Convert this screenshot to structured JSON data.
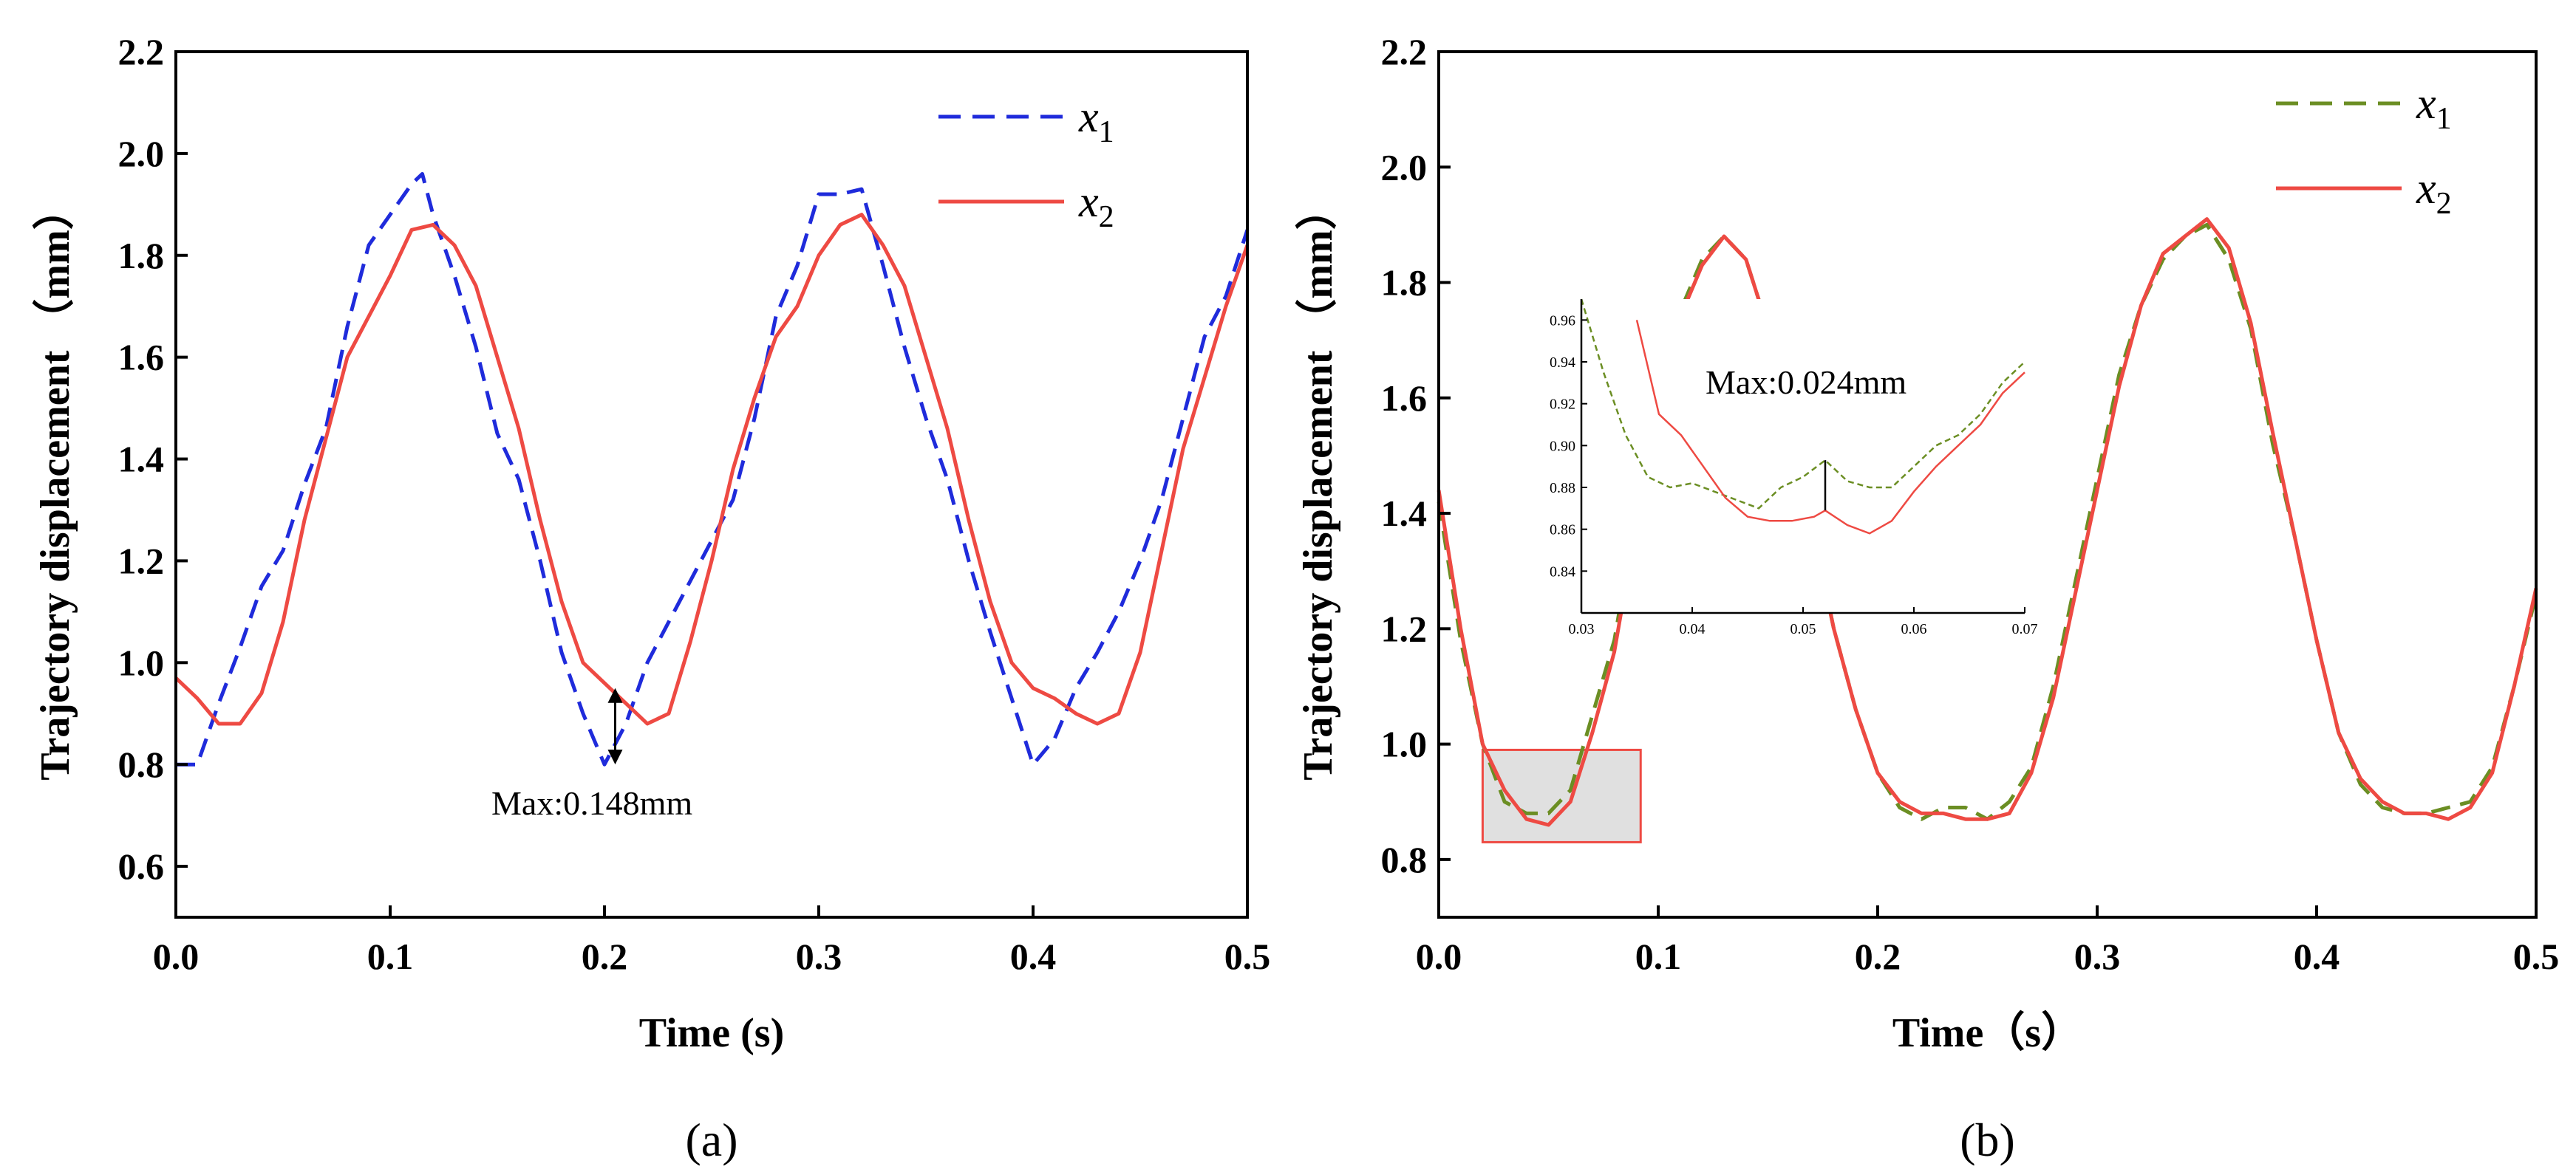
{
  "chart_data": [
    {
      "type": "line",
      "panel_label": "(a)",
      "xlabel": "Time (s)",
      "ylabel": "Trajectory displacement （mm）",
      "xlim": [
        0.0,
        0.5
      ],
      "ylim": [
        0.5,
        2.2
      ],
      "x_ticks": [
        "0.0",
        "0.1",
        "0.2",
        "0.3",
        "0.4",
        "0.5"
      ],
      "y_ticks": [
        "0.6",
        "0.8",
        "1.0",
        "1.2",
        "1.4",
        "1.6",
        "1.8",
        "2.0",
        "2.2"
      ],
      "legend_position": "top-right",
      "annotation": {
        "text": "Max:0.148mm",
        "x": 0.205,
        "y_top": 0.95,
        "y_bottom": 0.8
      },
      "series": [
        {
          "name": "x",
          "name_sub": "1",
          "color": "#1f2bdb",
          "style": "dashed",
          "x": [
            0.0,
            0.01,
            0.02,
            0.03,
            0.04,
            0.05,
            0.06,
            0.07,
            0.08,
            0.09,
            0.1,
            0.11,
            0.115,
            0.12,
            0.13,
            0.14,
            0.15,
            0.16,
            0.17,
            0.18,
            0.19,
            0.2,
            0.21,
            0.22,
            0.23,
            0.24,
            0.25,
            0.26,
            0.27,
            0.28,
            0.29,
            0.3,
            0.31,
            0.32,
            0.33,
            0.34,
            0.35,
            0.36,
            0.37,
            0.38,
            0.39,
            0.4,
            0.41,
            0.42,
            0.43,
            0.44,
            0.45,
            0.46,
            0.47,
            0.48,
            0.49,
            0.5
          ],
          "y": [
            0.8,
            0.8,
            0.92,
            1.03,
            1.15,
            1.22,
            1.35,
            1.46,
            1.66,
            1.82,
            1.88,
            1.94,
            1.96,
            1.88,
            1.76,
            1.62,
            1.45,
            1.36,
            1.2,
            1.02,
            0.9,
            0.8,
            0.88,
            1.0,
            1.08,
            1.16,
            1.24,
            1.32,
            1.48,
            1.68,
            1.78,
            1.92,
            1.92,
            1.93,
            1.78,
            1.62,
            1.48,
            1.36,
            1.2,
            1.06,
            0.93,
            0.8,
            0.85,
            0.95,
            1.02,
            1.1,
            1.2,
            1.32,
            1.48,
            1.64,
            1.72,
            1.85
          ]
        },
        {
          "name": "x",
          "name_sub": "2",
          "color": "#ee4a43",
          "style": "solid",
          "x": [
            0.0,
            0.01,
            0.02,
            0.03,
            0.04,
            0.05,
            0.06,
            0.07,
            0.08,
            0.09,
            0.1,
            0.11,
            0.12,
            0.13,
            0.14,
            0.15,
            0.16,
            0.17,
            0.18,
            0.19,
            0.2,
            0.21,
            0.22,
            0.23,
            0.24,
            0.25,
            0.26,
            0.27,
            0.28,
            0.29,
            0.3,
            0.31,
            0.32,
            0.33,
            0.34,
            0.35,
            0.36,
            0.37,
            0.38,
            0.39,
            0.4,
            0.41,
            0.42,
            0.43,
            0.44,
            0.45,
            0.46,
            0.47,
            0.48,
            0.49,
            0.5
          ],
          "y": [
            0.97,
            0.93,
            0.88,
            0.88,
            0.94,
            1.08,
            1.28,
            1.44,
            1.6,
            1.68,
            1.76,
            1.85,
            1.86,
            1.82,
            1.74,
            1.6,
            1.46,
            1.28,
            1.12,
            1.0,
            0.96,
            0.92,
            0.88,
            0.9,
            1.04,
            1.2,
            1.38,
            1.52,
            1.64,
            1.7,
            1.8,
            1.86,
            1.88,
            1.82,
            1.74,
            1.6,
            1.46,
            1.28,
            1.12,
            1.0,
            0.95,
            0.93,
            0.9,
            0.88,
            0.9,
            1.02,
            1.22,
            1.42,
            1.56,
            1.7,
            1.82
          ]
        }
      ]
    },
    {
      "type": "line",
      "panel_label": "(b)",
      "xlabel": "Time（s）",
      "ylabel": "Trajectory displacement （mm）",
      "xlim": [
        0.0,
        0.5
      ],
      "ylim": [
        0.7,
        2.2
      ],
      "x_ticks": [
        "0.0",
        "0.1",
        "0.2",
        "0.3",
        "0.4",
        "0.5"
      ],
      "y_ticks": [
        "0.8",
        "1.0",
        "1.2",
        "1.4",
        "1.6",
        "1.8",
        "2.0",
        "2.2"
      ],
      "legend_position": "top-right",
      "highlight_region": {
        "x": [
          0.02,
          0.092
        ],
        "y": [
          0.83,
          0.99
        ]
      },
      "series": [
        {
          "name": "x",
          "name_sub": "1",
          "color": "#6b8e23",
          "style": "dashed",
          "x": [
            0.0,
            0.01,
            0.02,
            0.03,
            0.04,
            0.05,
            0.06,
            0.07,
            0.08,
            0.09,
            0.1,
            0.11,
            0.12,
            0.13,
            0.14,
            0.15,
            0.16,
            0.17,
            0.18,
            0.19,
            0.2,
            0.21,
            0.22,
            0.23,
            0.24,
            0.25,
            0.26,
            0.27,
            0.28,
            0.29,
            0.3,
            0.31,
            0.32,
            0.33,
            0.34,
            0.35,
            0.36,
            0.37,
            0.38,
            0.39,
            0.4,
            0.41,
            0.42,
            0.43,
            0.44,
            0.45,
            0.46,
            0.47,
            0.48,
            0.49,
            0.5
          ],
          "y": [
            1.42,
            1.18,
            1.0,
            0.9,
            0.88,
            0.88,
            0.92,
            1.05,
            1.18,
            1.4,
            1.62,
            1.75,
            1.84,
            1.88,
            1.84,
            1.72,
            1.56,
            1.38,
            1.2,
            1.06,
            0.95,
            0.89,
            0.87,
            0.89,
            0.89,
            0.87,
            0.9,
            0.96,
            1.1,
            1.28,
            1.46,
            1.64,
            1.76,
            1.84,
            1.88,
            1.9,
            1.84,
            1.72,
            1.52,
            1.36,
            1.18,
            1.02,
            0.93,
            0.89,
            0.88,
            0.88,
            0.89,
            0.9,
            0.96,
            1.1,
            1.26
          ]
        },
        {
          "name": "x",
          "name_sub": "2",
          "color": "#ee4a43",
          "style": "solid",
          "x": [
            0.0,
            0.01,
            0.02,
            0.03,
            0.04,
            0.05,
            0.06,
            0.07,
            0.08,
            0.09,
            0.1,
            0.11,
            0.12,
            0.13,
            0.14,
            0.15,
            0.16,
            0.17,
            0.18,
            0.19,
            0.2,
            0.21,
            0.22,
            0.23,
            0.24,
            0.25,
            0.26,
            0.27,
            0.28,
            0.29,
            0.3,
            0.31,
            0.32,
            0.33,
            0.34,
            0.35,
            0.36,
            0.37,
            0.38,
            0.39,
            0.4,
            0.41,
            0.42,
            0.43,
            0.44,
            0.45,
            0.46,
            0.47,
            0.48,
            0.49,
            0.5
          ],
          "y": [
            1.44,
            1.2,
            1.0,
            0.92,
            0.87,
            0.86,
            0.9,
            1.02,
            1.16,
            1.38,
            1.6,
            1.74,
            1.83,
            1.88,
            1.84,
            1.72,
            1.56,
            1.38,
            1.2,
            1.06,
            0.95,
            0.9,
            0.88,
            0.88,
            0.87,
            0.87,
            0.88,
            0.95,
            1.08,
            1.26,
            1.44,
            1.62,
            1.76,
            1.85,
            1.88,
            1.91,
            1.86,
            1.73,
            1.54,
            1.36,
            1.18,
            1.02,
            0.94,
            0.9,
            0.88,
            0.88,
            0.87,
            0.89,
            0.95,
            1.1,
            1.27
          ]
        }
      ],
      "inset": {
        "xlim": [
          0.03,
          0.07
        ],
        "ylim": [
          0.82,
          0.97
        ],
        "x_ticks": [
          "0.03",
          "0.04",
          "0.05",
          "0.06",
          "0.07"
        ],
        "y_ticks": [
          "0.84",
          "0.86",
          "0.88",
          "0.90",
          "0.92",
          "0.94",
          "0.96"
        ],
        "annotation": {
          "text": "Max:0.024mm",
          "x": 0.052,
          "y_top": 0.893,
          "y_bottom": 0.869
        },
        "series": [
          {
            "name": "x1",
            "color": "#6b8e23",
            "style": "dashed",
            "x": [
              0.03,
              0.032,
              0.034,
              0.036,
              0.038,
              0.04,
              0.042,
              0.044,
              0.046,
              0.048,
              0.05,
              0.052,
              0.054,
              0.056,
              0.058,
              0.06,
              0.062,
              0.064,
              0.066,
              0.068,
              0.07
            ],
            "y": [
              0.97,
              0.935,
              0.905,
              0.885,
              0.88,
              0.882,
              0.878,
              0.874,
              0.87,
              0.88,
              0.885,
              0.893,
              0.883,
              0.88,
              0.88,
              0.89,
              0.9,
              0.905,
              0.915,
              0.93,
              0.94
            ]
          },
          {
            "name": "x2",
            "color": "#ee4a43",
            "style": "solid",
            "x": [
              0.035,
              0.037,
              0.039,
              0.041,
              0.043,
              0.045,
              0.047,
              0.049,
              0.051,
              0.052,
              0.054,
              0.056,
              0.058,
              0.06,
              0.062,
              0.064,
              0.066,
              0.068,
              0.07
            ],
            "y": [
              0.96,
              0.915,
              0.905,
              0.89,
              0.875,
              0.866,
              0.864,
              0.864,
              0.866,
              0.869,
              0.862,
              0.858,
              0.864,
              0.878,
              0.89,
              0.9,
              0.91,
              0.925,
              0.935
            ]
          }
        ]
      }
    }
  ]
}
